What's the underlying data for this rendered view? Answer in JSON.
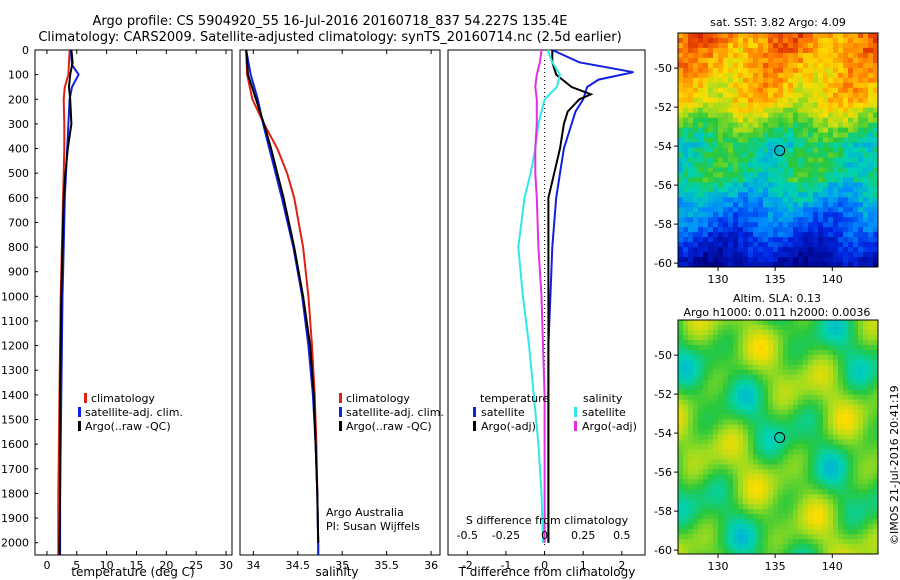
{
  "header": {
    "line1": "Argo profile: CS 5904920_55 16-Jul-2016 20160718_837 54.227S 135.4E",
    "line2": "Climatology: CARS2009. Satellite-adjusted climatology: synTS_20160714.nc (2.5d earlier)"
  },
  "colors": {
    "climatology": "#e02010",
    "satellite": "#1020e0",
    "argo": "#000000",
    "cyan": "#30e8e8",
    "magenta": "#e030e0"
  },
  "panels": {
    "temperature": {
      "xlabel": "temperature (deg C)",
      "xticks": [
        "0",
        "5",
        "10",
        "15",
        "20",
        "25",
        "30"
      ],
      "legend": [
        "climatology",
        "satellite-adj. clim.",
        "Argo(..raw -QC)"
      ]
    },
    "salinity": {
      "xlabel": "salinity",
      "xticks": [
        "34",
        "34.5",
        "35",
        "35.5",
        "36"
      ],
      "legend": [
        "climatology",
        "satellite-adj. clim.",
        "Argo(..raw -QC)"
      ],
      "note1": "Argo Australia",
      "note2": "PI: Susan Wijffels"
    },
    "difference": {
      "xlabel": "T difference from climatology",
      "top_label": "S difference from climatology",
      "s_ticks": [
        "-0.5",
        "-0.25",
        "0",
        "0.25",
        "0.5"
      ],
      "t_ticks": [
        "-2",
        "-1",
        "0",
        "1",
        "2"
      ],
      "legend_t_title": "temperature",
      "legend_s_title": "salinity",
      "legend_t": [
        "satellite",
        "Argo(-adj)"
      ],
      "legend_s": [
        "satellite",
        "Argo(-adj)"
      ]
    }
  },
  "depth_ticks": [
    "0",
    "100",
    "200",
    "300",
    "400",
    "500",
    "600",
    "700",
    "800",
    "900",
    "1000",
    "1100",
    "1200",
    "1300",
    "1400",
    "1500",
    "1600",
    "1700",
    "1800",
    "1900",
    "2000"
  ],
  "maps": {
    "sst": {
      "title": "sat. SST: 3.82  Argo: 4.09",
      "lat_ticks": [
        "-50",
        "-52",
        "-54",
        "-56",
        "-58",
        "-60"
      ],
      "lon_ticks": [
        "130",
        "135",
        "140"
      ]
    },
    "sla": {
      "title1": "Altim. SLA: 0.13",
      "title2": "Argo h1000: 0.011 h2000: 0.0036",
      "lat_ticks": [
        "-50",
        "-52",
        "-54",
        "-56",
        "-58",
        "-60"
      ],
      "lon_ticks": [
        "130",
        "135",
        "140"
      ]
    }
  },
  "stamp": "©IMOS 21-Jul-2016 20:41:19",
  "chart_data": [
    {
      "type": "line",
      "title": "",
      "xlabel": "temperature (deg C)",
      "ylabel": "",
      "xlim": [
        -2,
        31
      ],
      "ylim": [
        2050,
        0
      ],
      "series": [
        {
          "name": "climatology",
          "depth": [
            0,
            100,
            150,
            200,
            300,
            400,
            500,
            600,
            800,
            1000,
            1200,
            1400,
            1600,
            1800,
            2000,
            2050
          ],
          "values": [
            3.8,
            3.6,
            3.0,
            2.8,
            2.9,
            2.9,
            2.8,
            2.7,
            2.5,
            2.3,
            2.2,
            2.1,
            2.0,
            1.9,
            1.9,
            1.9
          ]
        },
        {
          "name": "satellite-adj. clim.",
          "depth": [
            0,
            60,
            100,
            150,
            200,
            300,
            400,
            500,
            600,
            800,
            1000,
            1200,
            1400,
            1600,
            1800,
            2000,
            2050
          ],
          "values": [
            4.0,
            4.2,
            5.3,
            4.2,
            3.8,
            3.6,
            3.4,
            3.2,
            3.0,
            2.8,
            2.6,
            2.5,
            2.4,
            2.3,
            2.2,
            2.2,
            2.2
          ]
        },
        {
          "name": "Argo(..raw -QC)",
          "depth": [
            0,
            50,
            100,
            150,
            200,
            300,
            400,
            500,
            600,
            800,
            1000,
            1200,
            1400,
            1600,
            1800,
            2000,
            2050
          ],
          "values": [
            4.1,
            4.3,
            3.9,
            3.7,
            3.9,
            4.1,
            3.5,
            3.1,
            2.8,
            2.6,
            2.4,
            2.3,
            2.2,
            2.2,
            2.2,
            2.1,
            2.1
          ]
        }
      ]
    },
    {
      "type": "line",
      "title": "",
      "xlabel": "salinity",
      "ylabel": "",
      "xlim": [
        33.85,
        36.1
      ],
      "ylim": [
        2050,
        0
      ],
      "series": [
        {
          "name": "climatology",
          "depth": [
            0,
            100,
            200,
            300,
            400,
            500,
            600,
            800,
            1000,
            1200,
            1400,
            1600,
            1800,
            2000,
            2050
          ],
          "values": [
            33.92,
            33.93,
            33.99,
            34.12,
            34.27,
            34.38,
            34.46,
            34.56,
            34.62,
            34.66,
            34.69,
            34.71,
            34.72,
            34.73,
            34.73
          ]
        },
        {
          "name": "satellite-adj. clim.",
          "depth": [
            0,
            100,
            200,
            300,
            400,
            500,
            600,
            800,
            1000,
            1200,
            1400,
            1600,
            1800,
            2000,
            2050
          ],
          "values": [
            33.92,
            33.97,
            34.05,
            34.11,
            34.18,
            34.25,
            34.32,
            34.45,
            34.55,
            34.62,
            34.67,
            34.7,
            34.72,
            34.73,
            34.73
          ]
        },
        {
          "name": "Argo(..raw -QC)",
          "depth": [
            0,
            100,
            200,
            300,
            400,
            500,
            600,
            800,
            1000,
            1200,
            1400,
            1600,
            1800,
            2000
          ],
          "values": [
            33.92,
            33.94,
            34.03,
            34.12,
            34.2,
            34.27,
            34.34,
            34.46,
            34.56,
            34.64,
            34.68,
            34.7,
            34.72,
            34.73
          ]
        }
      ]
    },
    {
      "type": "line",
      "title": "",
      "xlabel": "T difference from climatology",
      "ylabel": "S difference from climatology",
      "xlim": [
        -2.5,
        2.6
      ],
      "ylim": [
        2050,
        0
      ],
      "series": [
        {
          "name": "temperature satellite",
          "depth": [
            0,
            50,
            90,
            120,
            150,
            200,
            250,
            300,
            400,
            500,
            600,
            800,
            1000,
            1200,
            1400,
            1600,
            1800,
            2000
          ],
          "values": [
            0.2,
            0.9,
            2.3,
            1.4,
            1.1,
            1.0,
            0.8,
            0.7,
            0.5,
            0.4,
            0.3,
            0.2,
            0.15,
            0.1,
            0.1,
            0.1,
            0.1,
            0.1
          ]
        },
        {
          "name": "temperature Argo(-adj)",
          "depth": [
            0,
            50,
            100,
            150,
            180,
            200,
            250,
            300,
            400,
            500,
            600,
            800,
            1000,
            1200,
            1400,
            1600,
            1800,
            2000
          ],
          "values": [
            0.2,
            0.2,
            0.3,
            0.7,
            1.2,
            0.9,
            0.6,
            0.5,
            0.4,
            0.25,
            0.1,
            0.1,
            0.1,
            0.1,
            0.1,
            0.1,
            0.1,
            0.1
          ]
        },
        {
          "name": "salinity satellite",
          "depth": [
            0,
            50,
            100,
            150,
            200,
            300,
            400,
            500,
            600,
            800,
            1000,
            1200,
            1400,
            1600,
            1800,
            2000
          ],
          "values": [
            0.02,
            0.05,
            0.1,
            0.08,
            0.0,
            -0.04,
            -0.06,
            -0.09,
            -0.13,
            -0.17,
            -0.14,
            -0.1,
            -0.07,
            -0.04,
            -0.02,
            -0.01
          ]
        },
        {
          "name": "salinity Argo(-adj)",
          "depth": [
            0,
            50,
            100,
            150,
            200,
            300,
            400,
            500,
            600,
            800,
            1000,
            1200,
            1400,
            1600,
            1800,
            2000
          ],
          "values": [
            -0.02,
            -0.03,
            -0.05,
            -0.06,
            -0.05,
            -0.05,
            -0.06,
            -0.06,
            -0.05,
            -0.04,
            -0.02,
            -0.01,
            0.0,
            0.0,
            0.0,
            0.0
          ]
        }
      ]
    },
    {
      "type": "heatmap",
      "title": "sat. SST: 3.82  Argo: 4.09",
      "xlabel": "",
      "ylabel": "",
      "xlim": [
        126.5,
        144
      ],
      "ylim": [
        -60.2,
        -48.2
      ],
      "marker": {
        "lon": 135.4,
        "lat": -54.227
      }
    },
    {
      "type": "heatmap",
      "title": "Altim. SLA: 0.13",
      "xlabel": "",
      "ylabel": "",
      "xlim": [
        126.5,
        144
      ],
      "ylim": [
        -60.2,
        -48.2
      ],
      "marker": {
        "lon": 135.4,
        "lat": -54.227
      }
    }
  ]
}
